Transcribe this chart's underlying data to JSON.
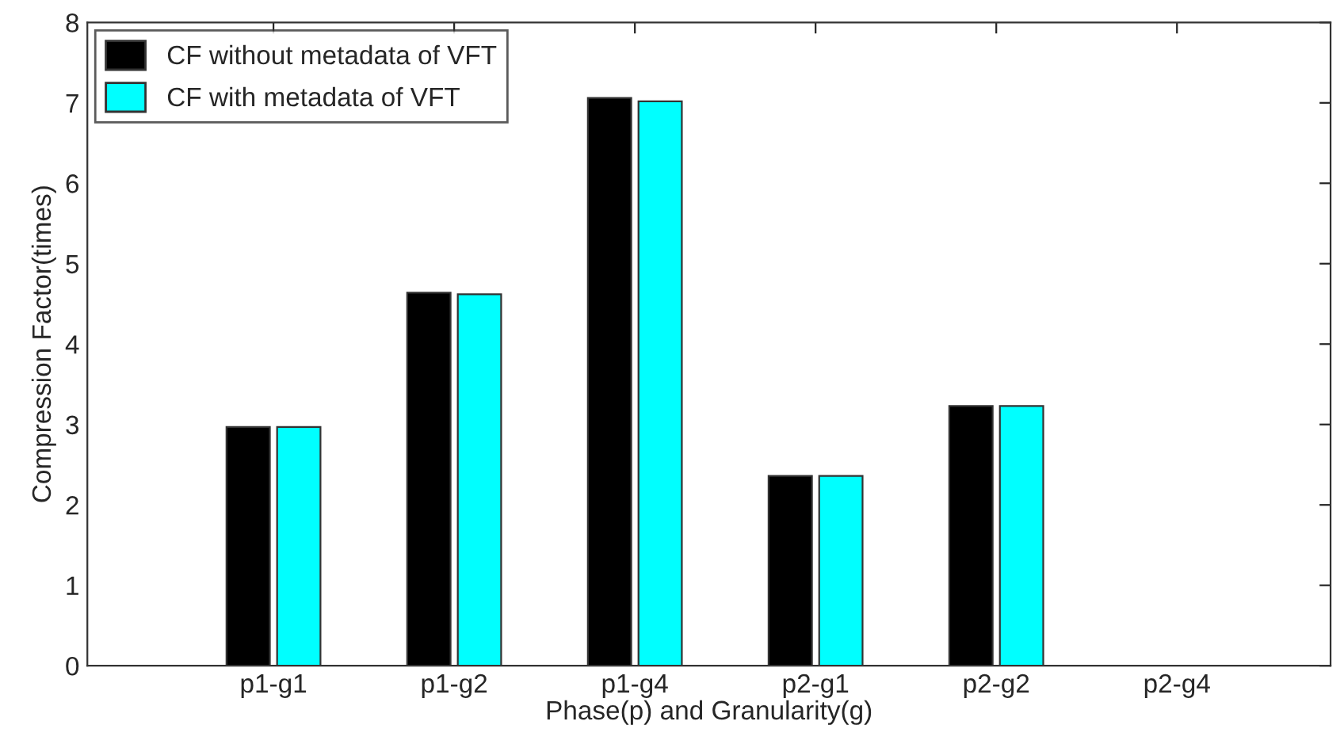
{
  "chart_data": {
    "type": "bar",
    "xlabel": "Phase(p) and Granularity(g)",
    "ylabel": "Compression Factor(times)",
    "categories": [
      "p1-g1",
      "p1-g2",
      "p1-g4",
      "p2-g1",
      "p2-g2",
      "p2-g4"
    ],
    "series": [
      {
        "name": "CF without metadata of VFT",
        "color": "#000000",
        "values": [
          2.97,
          4.64,
          7.06,
          2.36,
          3.23,
          null
        ]
      },
      {
        "name": "CF with metadata of VFT",
        "color": "#00ffff",
        "values": [
          2.97,
          4.62,
          7.02,
          2.36,
          3.23,
          null
        ]
      }
    ],
    "ylim": [
      0,
      8
    ],
    "yticks": [
      0,
      1,
      2,
      3,
      4,
      5,
      6,
      7,
      8
    ],
    "legend": "top left",
    "grid": false
  }
}
